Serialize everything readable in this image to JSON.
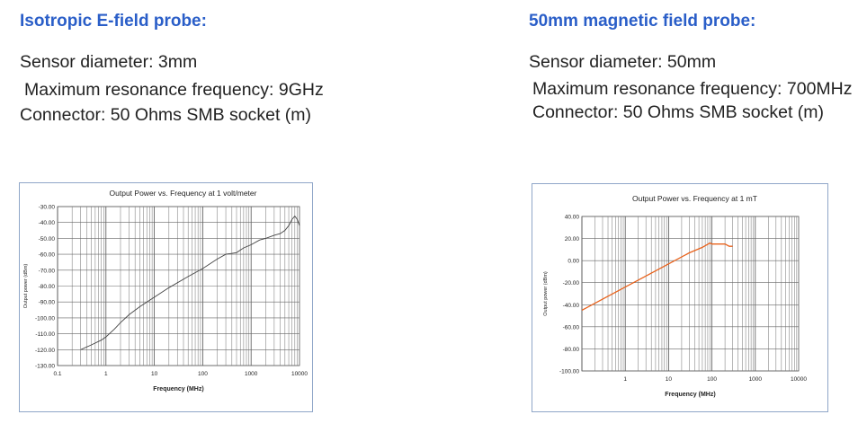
{
  "left_panel": {
    "title": "Isotropic E-field probe:",
    "specs": [
      "Sensor diameter: 3mm",
      "Maximum resonance frequency: 9GHz",
      "Connector: 50 Ohms SMB socket (m)"
    ]
  },
  "right_panel": {
    "title": "50mm magnetic field probe:",
    "specs": [
      "Sensor diameter: 50mm",
      "Maximum resonance frequency: 700MHz",
      "Connector: 50 Ohms SMB socket (m)"
    ]
  },
  "chart_data": [
    {
      "type": "line",
      "title": "Output Power vs. Frequency at 1 volt/meter",
      "xlabel": "Frequency (MHz)",
      "ylabel": "Output power (dBm)",
      "x_scale": "log",
      "xlim": [
        0.1,
        10000
      ],
      "ylim": [
        -130,
        -30
      ],
      "x_ticks": [
        "0.1",
        "1",
        "10",
        "100",
        "1000",
        "10000"
      ],
      "y_ticks": [
        "-30.00",
        "-40.00",
        "-50.00",
        "-60.00",
        "-70.00",
        "-80.00",
        "-90.00",
        "-100.00",
        "-110.00",
        "-120.00",
        "-130.00"
      ],
      "grid": true,
      "series_color": "#444444",
      "series": [
        {
          "x": [
            0.3,
            0.5,
            0.8,
            1,
            1.5,
            2,
            3,
            5,
            10,
            20,
            50,
            100,
            200,
            300,
            500,
            700,
            1000,
            1500,
            2000,
            3000,
            4000,
            5000,
            6000,
            7000,
            8000,
            9000,
            10000
          ],
          "y": [
            -120,
            -117,
            -114,
            -112,
            -107,
            -103,
            -98,
            -93,
            -87,
            -81,
            -74,
            -69,
            -63,
            -60,
            -59,
            -56,
            -54,
            -51,
            -50,
            -48,
            -47,
            -45,
            -42,
            -38,
            -36,
            -38,
            -42
          ]
        }
      ]
    },
    {
      "type": "line",
      "title": "Output Power vs. Frequency at 1 mT",
      "xlabel": "Frequency (MHz)",
      "ylabel": "Output power (dBm)",
      "x_scale": "log",
      "xlim": [
        0.1,
        10000
      ],
      "ylim": [
        -100,
        40
      ],
      "x_ticks": [
        "1",
        "10",
        "100",
        "1000",
        "10000"
      ],
      "y_ticks": [
        "40.00",
        "20.00",
        "0.00",
        "-20.00",
        "-40.00",
        "-60.00",
        "-80.00",
        "-100.00"
      ],
      "grid": true,
      "series_color": "#e8621c",
      "series": [
        {
          "x": [
            0.1,
            0.3,
            1,
            3,
            10,
            30,
            60,
            90,
            100,
            150,
            200,
            250,
            300
          ],
          "y": [
            -45,
            -35,
            -24,
            -14,
            -3,
            7,
            12,
            16,
            15,
            15,
            15,
            13,
            13
          ]
        }
      ]
    }
  ]
}
